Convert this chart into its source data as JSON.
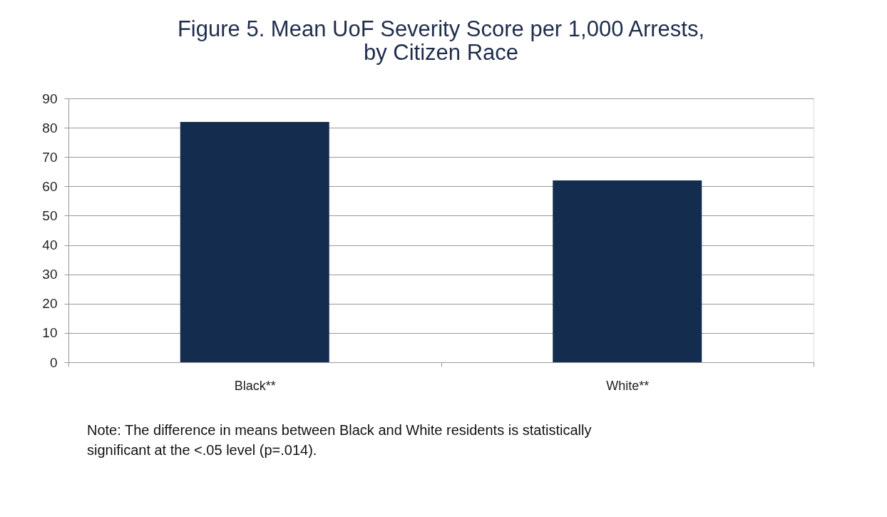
{
  "chart_data": {
    "type": "bar",
    "title": [
      "Figure 5.  Mean UoF Severity Score per 1,000 Arrests,",
      "by Citizen Race"
    ],
    "categories": [
      "Black**",
      "White**"
    ],
    "values": [
      82,
      62
    ],
    "color": "#142d4f",
    "ylim": [
      0,
      90
    ],
    "yticks": [
      0,
      10,
      20,
      30,
      40,
      50,
      60,
      70,
      80,
      90
    ],
    "grid": "y",
    "annotations": [
      "Note: The difference in means between Black and White residents is statistically\nsignificant at the <.05 level (p=.014)."
    ]
  }
}
